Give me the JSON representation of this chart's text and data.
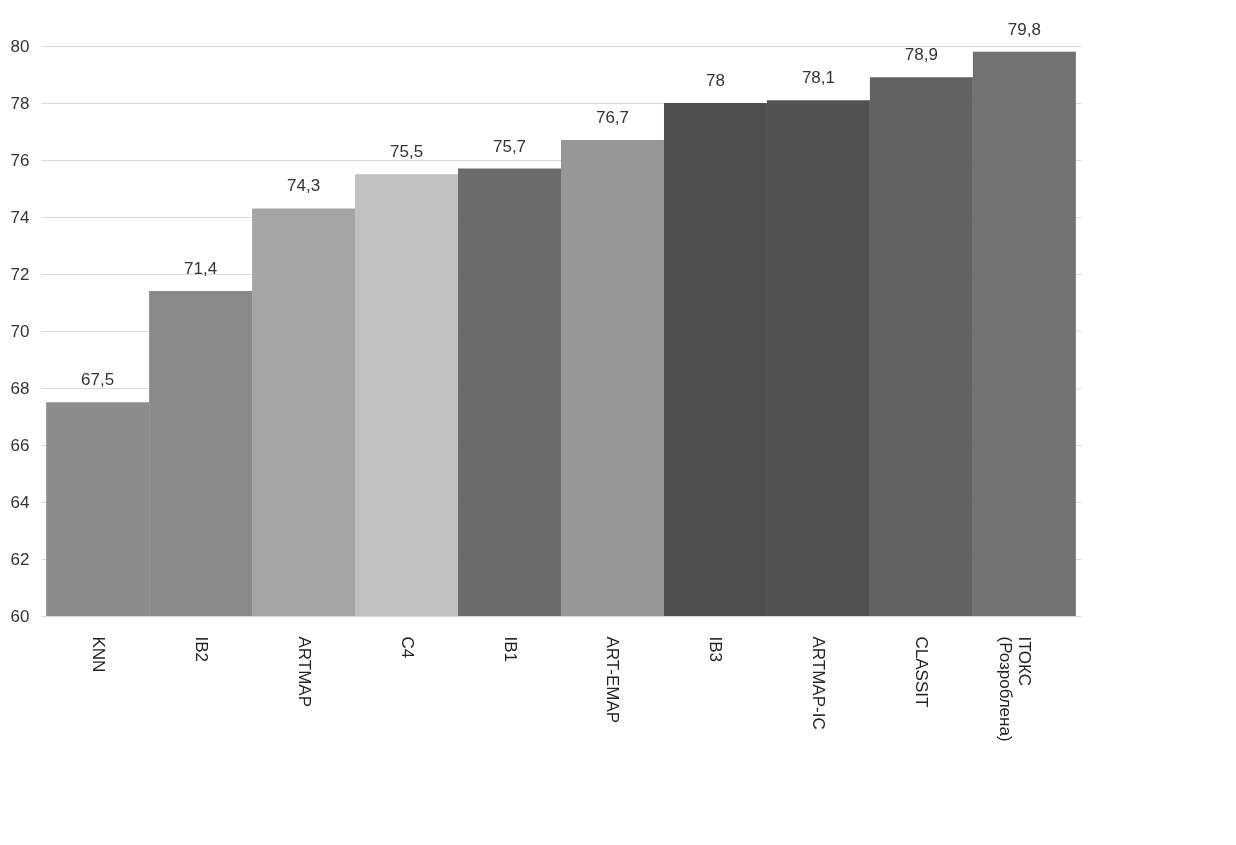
{
  "chart_data": {
    "type": "bar",
    "categories": [
      "KNN",
      "IB2",
      "ARTMAP",
      "C4",
      "IB1",
      "ART-EMAP",
      "IB3",
      "ARTMAP-IC",
      "CLASSIT",
      "ІТОКС\n(Розроблена)"
    ],
    "values": [
      67.5,
      71.4,
      74.3,
      75.5,
      75.7,
      76.7,
      78,
      78.1,
      78.9,
      79.8
    ],
    "value_labels": [
      "67,5",
      "71,4",
      "74,3",
      "75,5",
      "75,7",
      "76,7",
      "78",
      "78,1",
      "78,9",
      "79,8"
    ],
    "colors": [
      "#8c8c8c",
      "#8a8a8a",
      "#a5a5a5",
      "#c0c0c0",
      "#6b6b6b",
      "#979797",
      "#4f4f4f",
      "#525252",
      "#626262",
      "#727272"
    ],
    "ylim": [
      60,
      80
    ],
    "yticks": [
      60,
      62,
      64,
      66,
      68,
      70,
      72,
      74,
      76,
      78,
      80
    ],
    "grid": true
  }
}
